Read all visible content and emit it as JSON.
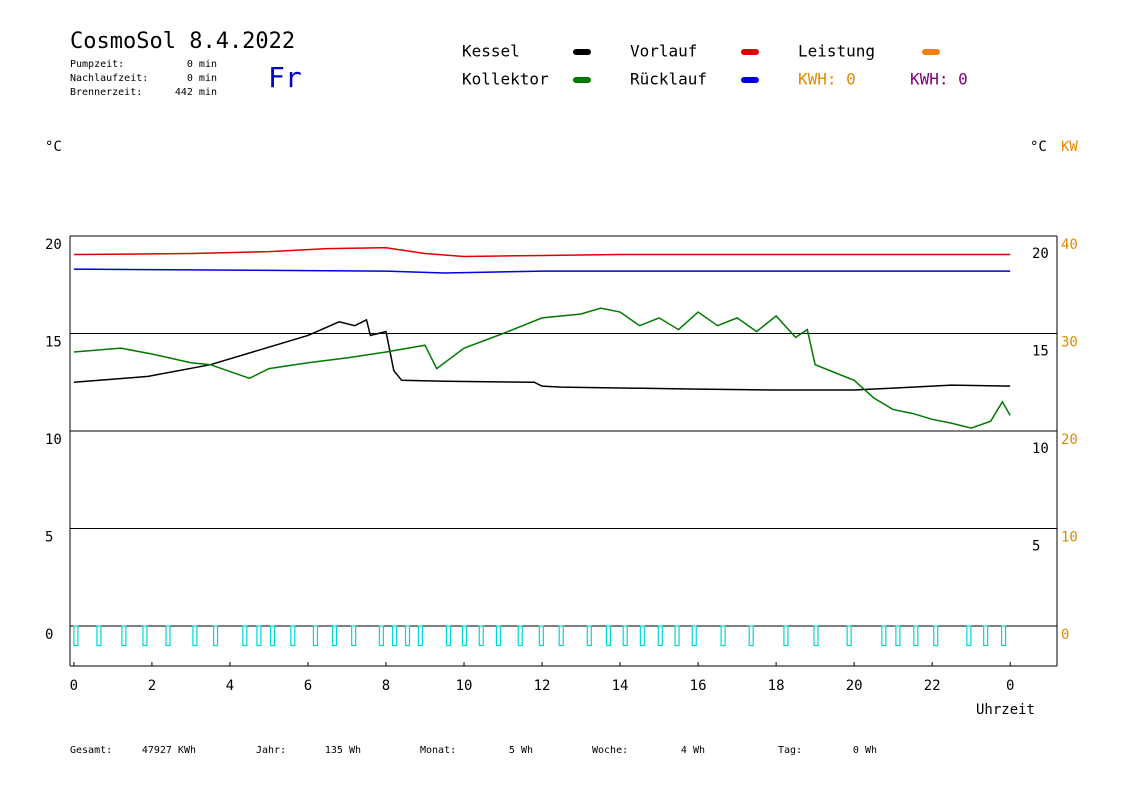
{
  "header": {
    "title": "CosmoSol 8.4.2022",
    "weekday": "Fr",
    "info": [
      {
        "label": "Pumpzeit:",
        "value": "0 min"
      },
      {
        "label": "Nachlaufzeit:",
        "value": "0 min"
      },
      {
        "label": "Brennerzeit:",
        "value": "442 min"
      }
    ]
  },
  "chart_data": {
    "type": "line",
    "y_unit": "°C",
    "y2_unit_left": "°C",
    "y2_unit": "KW",
    "xlabel": "Uhrzeit",
    "xlim": [
      -0.1,
      25.2
    ],
    "xticks": [
      0,
      2,
      4,
      6,
      8,
      10,
      12,
      14,
      16,
      18,
      20,
      22,
      {
        "value": 24,
        "label": "0"
      }
    ],
    "ylim": [
      -2.05,
      20
    ],
    "yticks": [
      0,
      5,
      10,
      15,
      20
    ],
    "right_yticks": [
      5,
      10,
      15,
      20
    ],
    "y2lim": [
      -4.1,
      40
    ],
    "y2ticks": [
      0,
      10,
      20,
      30,
      40
    ],
    "y2color": "#e08a00",
    "grid": true,
    "series": [
      {
        "name": "Kessel",
        "color": "#000000",
        "x": [
          0,
          1.9,
          3.5,
          6,
          6.8,
          7.2,
          7.5,
          7.6,
          8.0,
          8.2,
          8.4,
          9.5,
          11.8,
          12,
          12.5,
          16,
          18,
          20,
          21,
          22.5,
          24
        ],
        "values": [
          12.5,
          12.8,
          13.4,
          14.9,
          15.6,
          15.4,
          15.7,
          14.9,
          15.1,
          13.1,
          12.6,
          12.55,
          12.5,
          12.3,
          12.25,
          12.15,
          12.1,
          12.1,
          12.2,
          12.35,
          12.3
        ]
      },
      {
        "name": "Kollektor",
        "color": "#007a00",
        "x": [
          0,
          1.2,
          2,
          3,
          3.5,
          4.5,
          5,
          6,
          7,
          8,
          9,
          9.3,
          10,
          11,
          12,
          13,
          13.5,
          14,
          14.5,
          15,
          15.5,
          16,
          16.5,
          17,
          17.5,
          18,
          18.5,
          18.8,
          19,
          19.5,
          20,
          20.5,
          21,
          21.5,
          22,
          22.5,
          23,
          23.5,
          23.8,
          24
        ],
        "values": [
          14.05,
          14.25,
          13.95,
          13.5,
          13.4,
          12.7,
          13.2,
          13.5,
          13.75,
          14.05,
          14.4,
          13.2,
          14.25,
          15.0,
          15.8,
          16.0,
          16.3,
          16.1,
          15.4,
          15.8,
          15.2,
          16.1,
          15.4,
          15.8,
          15.1,
          15.9,
          14.8,
          15.2,
          13.4,
          13.0,
          12.6,
          11.7,
          11.1,
          10.9,
          10.6,
          10.4,
          10.15,
          10.5,
          11.5,
          10.8
        ]
      },
      {
        "name": "Vorlauf",
        "color": "#e00000",
        "x": [
          0,
          3,
          5,
          6.5,
          8,
          9,
          10,
          12,
          14,
          24
        ],
        "values": [
          19.05,
          19.1,
          19.2,
          19.35,
          19.4,
          19.1,
          18.95,
          19.0,
          19.05,
          19.05
        ]
      },
      {
        "name": "Rücklauf",
        "color": "#0000e0",
        "x": [
          0,
          8,
          9.5,
          12,
          24
        ],
        "values": [
          18.3,
          18.2,
          18.1,
          18.2,
          18.2
        ]
      },
      {
        "name": "Leistung",
        "color": "#f08010"
      }
    ],
    "kwh_labels": [
      {
        "text": "KWH: 0",
        "color": "#e08a00"
      },
      {
        "text": "KWH: 0",
        "color": "#800080"
      }
    ],
    "pulses": {
      "color": "#00d8d8",
      "x": [
        0,
        0.59,
        1.23,
        1.77,
        2.36,
        3.05,
        3.58,
        4.33,
        4.69,
        5.04,
        5.56,
        6.14,
        6.63,
        7.12,
        7.83,
        8.17,
        8.5,
        8.83,
        9.55,
        9.96,
        10.39,
        10.83,
        11.39,
        11.93,
        12.44,
        13.16,
        13.65,
        14.08,
        14.52,
        14.98,
        15.41,
        15.85,
        16.59,
        17.31,
        18.2,
        18.97,
        19.82,
        20.71,
        21.07,
        21.53,
        22.04,
        22.89,
        23.32,
        23.78
      ],
      "values": [
        -1,
        -1,
        -1,
        -1,
        -1,
        -1,
        -1,
        -1,
        -1,
        -1,
        -1,
        -1,
        -1,
        -1,
        -1,
        -1,
        -1,
        -1,
        -1,
        -1,
        -1,
        -1,
        -1,
        -1,
        -1,
        -1,
        -1,
        -1,
        -1,
        -1,
        -1,
        -1,
        -1,
        -1,
        -1,
        -1,
        -1,
        -1,
        -1,
        -1,
        -1,
        -1,
        -1,
        -1
      ]
    }
  },
  "footer": [
    {
      "label": "Gesamt:",
      "value": "47927 KWh"
    },
    {
      "label": "Jahr:",
      "value": "135 Wh"
    },
    {
      "label": "Monat:",
      "value": "5 Wh"
    },
    {
      "label": "Woche:",
      "value": "4 Wh"
    },
    {
      "label": "Tag:",
      "value": "0 Wh"
    }
  ]
}
